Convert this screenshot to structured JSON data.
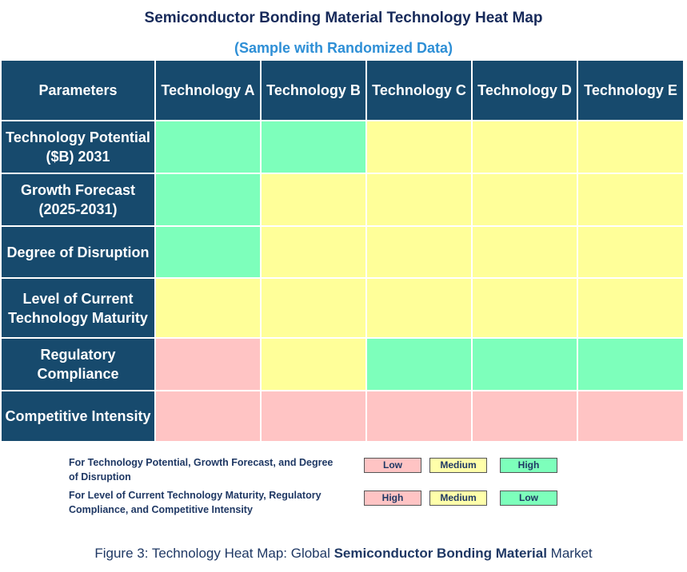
{
  "header": {
    "title": "Semiconductor Bonding Material Technology Heat Map",
    "subtitle": "(Sample with Randomized Data)"
  },
  "table": {
    "columns": [
      "Parameters",
      "Technology A",
      "Technology B",
      "Technology C",
      "Technology D",
      "Technology E"
    ],
    "rows": [
      {
        "label": "Technology Potential ($B) 2031",
        "colors": [
          "#7dffbb",
          "#7dffbb",
          "#ffff99",
          "#ffff99",
          "#ffff99"
        ]
      },
      {
        "label": "Growth Forecast (2025-2031)",
        "colors": [
          "#7dffbb",
          "#ffff99",
          "#ffff99",
          "#ffff99",
          "#ffff99"
        ]
      },
      {
        "label": "Degree of Disruption",
        "colors": [
          "#7dffbb",
          "#ffff99",
          "#ffff99",
          "#ffff99",
          "#ffff99"
        ]
      },
      {
        "label": "Level of Current Technology Maturity",
        "colors": [
          "#ffff99",
          "#ffff99",
          "#ffff99",
          "#ffff99",
          "#ffff99"
        ]
      },
      {
        "label": "Regulatory Compliance",
        "colors": [
          "#ffc4c4",
          "#ffff99",
          "#7dffbb",
          "#7dffbb",
          "#7dffbb"
        ]
      },
      {
        "label": "Competitive Intensity",
        "colors": [
          "#ffc4c4",
          "#ffc4c4",
          "#ffc4c4",
          "#ffc4c4",
          "#ffc4c4"
        ]
      }
    ]
  },
  "legend": [
    {
      "text": "For Technology Potential, Growth Forecast, and Degree of Disruption",
      "items": [
        {
          "label": "Low",
          "color": "#ffc4c4"
        },
        {
          "label": "Medium",
          "color": "#ffffaa"
        },
        {
          "label": "High",
          "color": "#7dffbb"
        }
      ]
    },
    {
      "text": "For Level of Current Technology Maturity, Regulatory Compliance, and Competitive Intensity",
      "items": [
        {
          "label": "High",
          "color": "#ffc4c4"
        },
        {
          "label": "Medium",
          "color": "#ffffaa"
        },
        {
          "label": "Low",
          "color": "#7dffbb"
        }
      ]
    }
  ],
  "caption": {
    "parts": [
      {
        "text": "Figure 3: Technology Heat Map: Global ",
        "bold": false
      },
      {
        "text": "Semiconductor Bonding Material",
        "bold": true
      },
      {
        "text": " Market",
        "bold": false
      }
    ]
  }
}
